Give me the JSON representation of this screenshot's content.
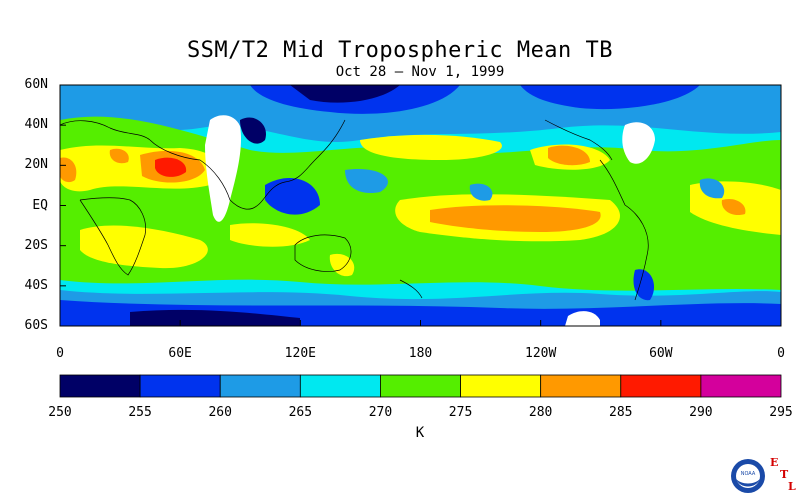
{
  "title": "SSM/T2 Mid Tropospheric Mean TB",
  "subtitle": "Oct 28 – Nov 1, 1999",
  "lat_labels": [
    "60N",
    "40N",
    "20N",
    "EQ",
    "20S",
    "40S",
    "60S"
  ],
  "lon_labels": [
    "0",
    "60E",
    "120E",
    "180",
    "120W",
    "60W",
    "0"
  ],
  "colorbar": {
    "ticks": [
      "250",
      "255",
      "260",
      "265",
      "270",
      "275",
      "280",
      "285",
      "290",
      "295"
    ],
    "colors": [
      "#000066",
      "#0033ee",
      "#1e9be6",
      "#00e8f0",
      "#55ee00",
      "#ffff00",
      "#ff9900",
      "#ff1a00",
      "#d4009c"
    ],
    "unit": "K"
  },
  "logo": {
    "text": "NOAA",
    "letters": [
      "E",
      "T",
      "L"
    ]
  }
}
